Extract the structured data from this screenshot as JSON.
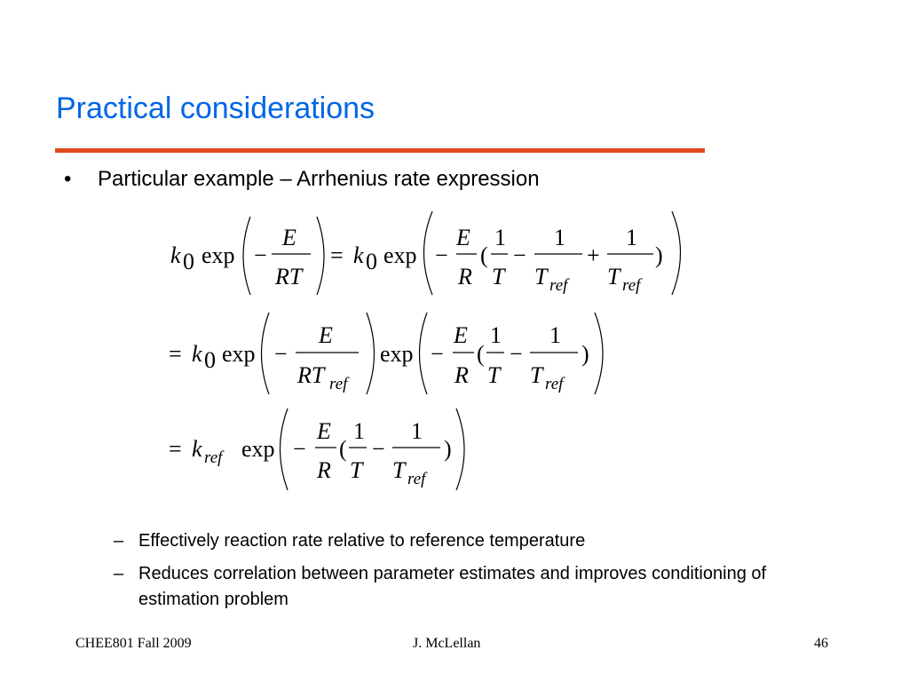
{
  "title": "Practical considerations",
  "accent_colors": {
    "title": "#0066e6",
    "rule": "#e24a1d"
  },
  "bullet": {
    "marker": "•",
    "text": "Particular example – Arrhenius rate expression"
  },
  "equations": {
    "line1": "k0 exp(−E/(RT)) = k0 exp(−(E/R)(1/T − 1/Tref + 1/Tref))",
    "line2": "= k0 exp(−E/(R·Tref)) exp(−(E/R)(1/T − 1/Tref))",
    "line3": "= kref exp(−(E/R)(1/T − 1/Tref))"
  },
  "sub_bullets": [
    {
      "marker": "–",
      "text": "Effectively reaction rate relative to reference temperature"
    },
    {
      "marker": "–",
      "text": "Reduces correlation between parameter estimates and improves conditioning of estimation problem"
    }
  ],
  "footer": {
    "left": "CHEE801  Fall 2009",
    "center": "J. McLellan",
    "page_number": "46"
  }
}
